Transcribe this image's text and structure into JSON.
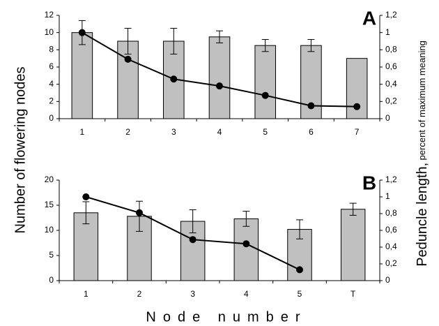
{
  "axis_labels": {
    "y": "Number of flowering nodes",
    "y2": "Peduncle length,",
    "y2_sub": "percent of maximum meaning",
    "x": "Node number"
  },
  "chart_data": [
    {
      "type": "bar",
      "panel_label": "A",
      "categories": [
        "1",
        "2",
        "3",
        "4",
        "5",
        "6",
        "7"
      ],
      "ylim": [
        0,
        12
      ],
      "yticks": [
        0,
        2,
        4,
        6,
        8,
        10,
        12
      ],
      "y2lim": [
        0,
        1.2
      ],
      "y2ticks": [
        0,
        {
          "value": 0.2,
          "label": "0,2"
        },
        {
          "value": 0.4,
          "label": "0,4"
        },
        {
          "value": 0.6,
          "label": "0,6"
        },
        {
          "value": 0.8,
          "label": "0,8"
        },
        1,
        {
          "value": 1.2,
          "label": "1,2"
        }
      ],
      "series": [
        {
          "type": "bar",
          "color": "#c0c0c0",
          "values": [
            10,
            9,
            9,
            9.5,
            8.5,
            8.5,
            7
          ],
          "errors": [
            1.4,
            1.5,
            1.5,
            0.7,
            0.7,
            0.7,
            null
          ]
        },
        {
          "type": "line",
          "axis": "y2",
          "color": "#000000",
          "values": [
            1.0,
            0.69,
            0.46,
            0.38,
            0.27,
            0.15,
            0.14
          ]
        }
      ]
    },
    {
      "type": "bar",
      "panel_label": "B",
      "categories": [
        "1",
        "2",
        "3",
        "4",
        "5",
        "T"
      ],
      "ylim": [
        0,
        20
      ],
      "yticks": [
        0,
        5,
        10,
        15,
        20
      ],
      "y2lim": [
        0,
        1.2
      ],
      "y2ticks": [
        0,
        {
          "value": 0.2,
          "label": "0,2"
        },
        {
          "value": 0.4,
          "label": "0,4"
        },
        {
          "value": 0.6,
          "label": "0,6"
        },
        {
          "value": 0.8,
          "label": "0,8"
        },
        1,
        {
          "value": 1.2,
          "label": "1,2"
        }
      ],
      "series": [
        {
          "type": "bar",
          "color": "#c0c0c0",
          "values": [
            13.5,
            12.8,
            11.8,
            12.3,
            10.2,
            14.2
          ],
          "errors": [
            2.2,
            3.0,
            2.3,
            1.5,
            1.9,
            1.2
          ]
        },
        {
          "type": "line",
          "axis": "y2",
          "color": "#000000",
          "values": [
            1.0,
            0.81,
            0.49,
            0.44,
            0.13,
            null
          ]
        }
      ]
    }
  ]
}
